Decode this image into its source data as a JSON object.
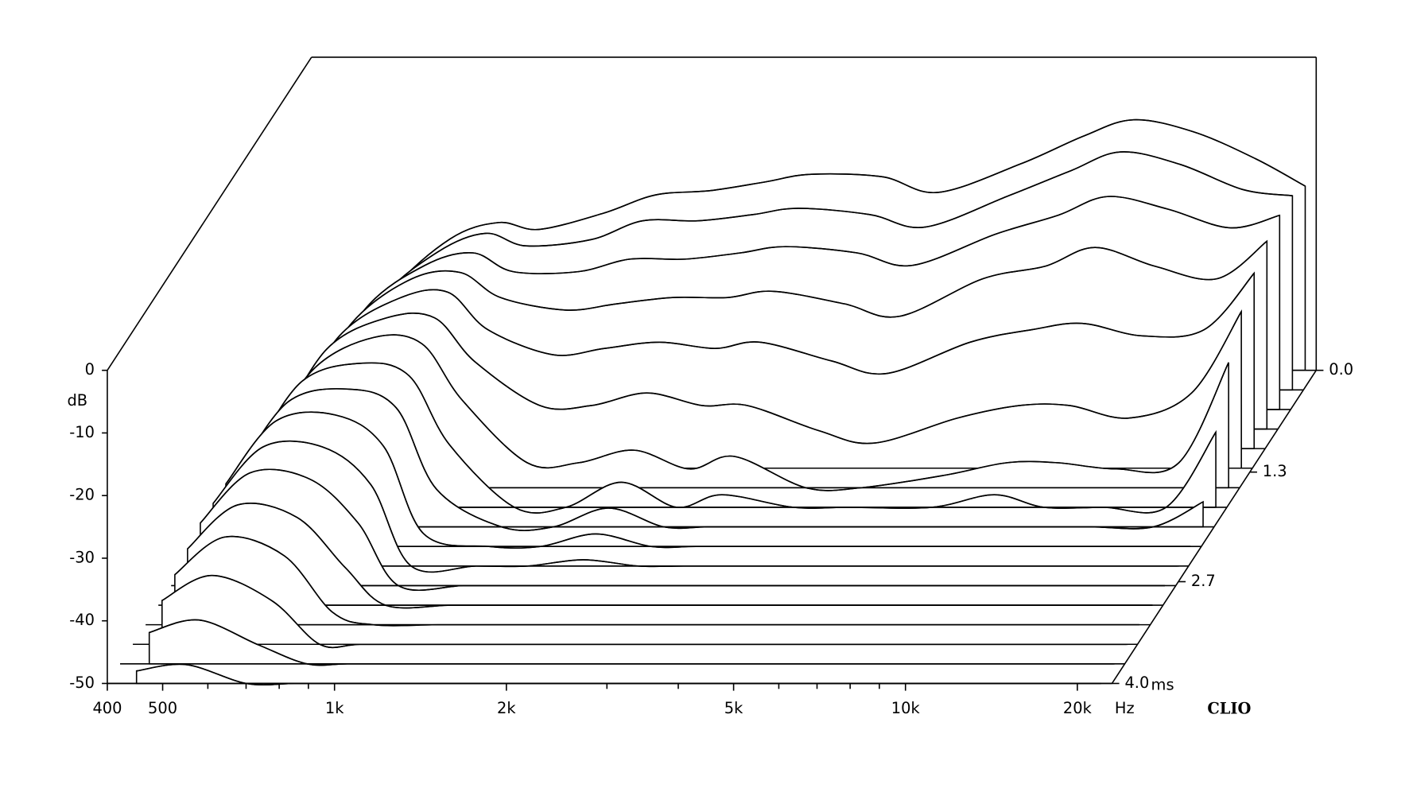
{
  "chart_data": {
    "type": "waterfall",
    "x_unit": "Hz",
    "y_unit": "dB",
    "z_unit": "ms",
    "brand": "CLIO",
    "xlog": true,
    "xlim": [
      400,
      23000
    ],
    "ylim": [
      -50,
      0
    ],
    "zlim": [
      0,
      4
    ],
    "xticks": [
      400,
      500,
      {
        "value": 1000,
        "label": "1k"
      },
      {
        "value": 2000,
        "label": "2k"
      },
      {
        "value": 5000,
        "label": "5k"
      },
      {
        "value": 10000,
        "label": "10k"
      },
      {
        "value": 20000,
        "label": "20k"
      }
    ],
    "xminor": [
      600,
      700,
      800,
      900,
      3000,
      4000,
      6000,
      7000,
      8000,
      9000
    ],
    "yticks": [
      0,
      -10,
      -20,
      -30,
      -40,
      -50
    ],
    "zticks": [
      {
        "value": 0,
        "label": "0.0"
      },
      1.3,
      2.7,
      {
        "value": 4,
        "label": "4.0"
      }
    ],
    "x": [
      450,
      550,
      700,
      850,
      1000,
      1300,
      1600,
      2000,
      2500,
      3000,
      4000,
      5000,
      7000,
      9000,
      11000,
      14000,
      18000,
      22000
    ],
    "z": [
      0,
      0.25,
      0.5,
      0.75,
      1,
      1.25,
      1.5,
      1.75,
      2,
      2.25,
      2.5,
      2.75,
      3,
      3.25,
      3.5,
      3.75,
      4
    ],
    "series": [
      {
        "values": [
          -50,
          -37.5,
          -29,
          -26.4,
          -27.5,
          -24.9,
          -22,
          -21.3,
          -19.9,
          -18.7,
          -19.1,
          -21.6,
          -17,
          -12.6,
          -10,
          -11.9,
          -16.2,
          -20.6
        ]
      },
      {
        "values": [
          -50,
          -36,
          -28,
          -25,
          -27,
          -26,
          -23,
          -23,
          -22,
          -21,
          -22,
          -24,
          -19,
          -15,
          -12,
          -14,
          -18,
          -19
        ]
      },
      {
        "values": [
          -48,
          -34,
          -27,
          -25,
          -28,
          -28,
          -26,
          -26,
          -25,
          -24,
          -25,
          -27,
          -22,
          -19,
          -16,
          -18,
          -21,
          -19
        ]
      },
      {
        "values": [
          -46,
          -33,
          -26,
          -25,
          -29,
          -31,
          -30,
          -29,
          -29,
          -28,
          -30,
          -32,
          -26,
          -24,
          -21,
          -24,
          -26,
          -20
        ]
      },
      {
        "values": [
          -45,
          -32,
          -26,
          -25,
          -31,
          -35,
          -34,
          -33,
          -34,
          -33,
          -36,
          -38,
          -33,
          -31,
          -30,
          -32,
          -31,
          -22
        ]
      },
      {
        "values": [
          -44,
          -31,
          -26,
          -26,
          -33,
          -40,
          -40,
          -38,
          -40,
          -40,
          -44,
          -46,
          -42,
          -40,
          -40,
          -42,
          -38,
          -25
        ]
      },
      {
        "values": [
          -43,
          -31,
          -26,
          -27,
          -36,
          -46,
          -46,
          -44,
          -47,
          -45,
          -50,
          -50,
          -48,
          -46,
          -46,
          -47,
          -46,
          -30
        ]
      },
      {
        "values": [
          -42,
          -30,
          -27,
          -29,
          -40,
          -50,
          -50,
          -46,
          -50,
          -48,
          -50,
          -50,
          -50,
          -48,
          -50,
          -50,
          -50,
          -38
        ]
      },
      {
        "values": [
          -41,
          -30,
          -28,
          -31,
          -44,
          -50,
          -50,
          -47,
          -50,
          -50,
          -50,
          -50,
          -50,
          -50,
          -50,
          -50,
          -50,
          -46
        ]
      },
      {
        "values": [
          -40,
          -30,
          -29,
          -34,
          -48,
          -50,
          -50,
          -48,
          -50,
          -50,
          -50,
          -50,
          -50,
          -50,
          -50,
          -50,
          -50,
          -50
        ]
      },
      {
        "values": [
          -40,
          -31,
          -31,
          -37,
          -50,
          -50,
          -50,
          -49,
          -50,
          -50,
          -50,
          -50,
          -50,
          -50,
          -50,
          -50,
          -50,
          -50
        ]
      },
      {
        "values": [
          -40,
          -32,
          -33,
          -40,
          -50,
          -50,
          -50,
          -50,
          -50,
          -50,
          -50,
          -50,
          -50,
          -50,
          -50,
          -50,
          -50,
          -50
        ]
      },
      {
        "values": [
          -41,
          -34,
          -36,
          -44,
          -50,
          -50,
          -50,
          -50,
          -50,
          -50,
          -50,
          -50,
          -50,
          -50,
          -50,
          -50,
          -50,
          -50
        ]
      },
      {
        "values": [
          -42,
          -36,
          -39,
          -48,
          -50,
          -50,
          -50,
          -50,
          -50,
          -50,
          -50,
          -50,
          -50,
          -50,
          -50,
          -50,
          -50,
          -50
        ]
      },
      {
        "values": [
          -43,
          -39,
          -43,
          -50,
          -50,
          -50,
          -50,
          -50,
          -50,
          -50,
          -50,
          -50,
          -50,
          -50,
          -50,
          -50,
          -50,
          -50
        ]
      },
      {
        "values": [
          -45,
          -43,
          -47,
          -50,
          -50,
          -50,
          -50,
          -50,
          -50,
          -50,
          -50,
          -50,
          -50,
          -50,
          -50,
          -50,
          -50,
          -50
        ]
      },
      {
        "values": [
          -48,
          -47,
          -50,
          -50,
          -50,
          -50,
          -50,
          -50,
          -50,
          -50,
          -50,
          -50,
          -50,
          -50,
          -50,
          -50,
          -50,
          -50
        ]
      }
    ]
  }
}
